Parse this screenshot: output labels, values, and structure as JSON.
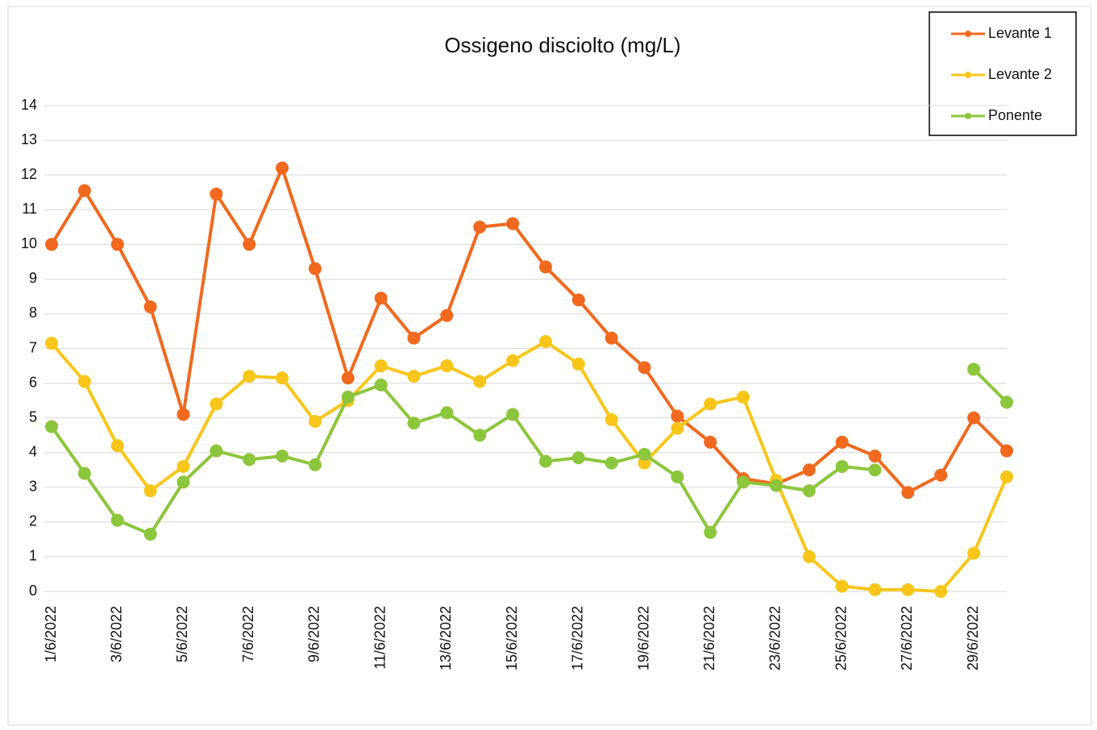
{
  "chart_data": {
    "type": "line",
    "title": "Ossigeno disciolto (mg/L)",
    "categories": [
      "1/6/2022",
      null,
      "3/6/2022",
      null,
      "5/6/2022",
      null,
      "7/6/2022",
      null,
      "9/6/2022",
      null,
      "11/6/2022",
      null,
      "13/6/2022",
      null,
      "15/6/2022",
      null,
      "17/6/2022",
      null,
      "19/6/2022",
      null,
      "21/6/2022",
      null,
      "23/6/2022",
      null,
      "25/6/2022",
      null,
      "27/6/2022",
      null,
      "29/6/2022",
      null
    ],
    "series": [
      {
        "name": "Levante 1",
        "color": "#f0691e",
        "values": [
          10.0,
          11.55,
          10.0,
          8.2,
          5.1,
          11.45,
          10.0,
          12.2,
          9.3,
          6.15,
          8.45,
          7.3,
          7.95,
          10.5,
          10.6,
          9.35,
          8.4,
          7.3,
          6.45,
          5.05,
          4.3,
          3.25,
          3.1,
          3.5,
          4.3,
          3.9,
          2.85,
          3.35,
          5.0,
          4.05
        ]
      },
      {
        "name": "Levante 2",
        "color": "#f8c61b",
        "values": [
          7.15,
          6.05,
          4.2,
          2.9,
          3.6,
          5.4,
          6.2,
          6.15,
          4.9,
          5.5,
          6.5,
          6.2,
          6.5,
          6.05,
          6.65,
          7.2,
          6.55,
          4.95,
          3.7,
          4.7,
          5.4,
          5.6,
          3.2,
          1.0,
          0.15,
          0.05,
          0.05,
          0.0,
          1.1,
          3.3
        ]
      },
      {
        "name": "Ponente",
        "color": "#8cc63c",
        "values": [
          4.75,
          3.4,
          2.05,
          1.65,
          3.15,
          4.05,
          3.8,
          3.9,
          3.65,
          5.6,
          5.95,
          4.85,
          5.15,
          4.5,
          5.1,
          3.75,
          3.85,
          3.7,
          3.95,
          3.3,
          1.7,
          3.15,
          3.05,
          2.9,
          3.6,
          3.5,
          null,
          null,
          6.4,
          5.45
        ]
      }
    ],
    "ylim": [
      0,
      14
    ],
    "yticks": [
      0,
      1,
      2,
      3,
      4,
      5,
      6,
      7,
      8,
      9,
      10,
      11,
      12,
      13,
      14
    ],
    "grid": true,
    "legend": "top-right"
  }
}
